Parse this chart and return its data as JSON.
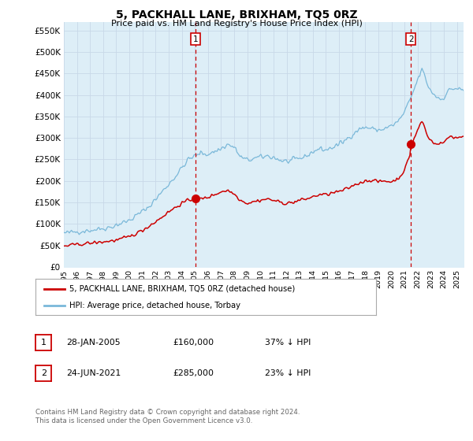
{
  "title": "5, PACKHALL LANE, BRIXHAM, TQ5 0RZ",
  "subtitle": "Price paid vs. HM Land Registry's House Price Index (HPI)",
  "ytick_values": [
    0,
    50000,
    100000,
    150000,
    200000,
    250000,
    300000,
    350000,
    400000,
    450000,
    500000,
    550000
  ],
  "ylim": [
    0,
    570000
  ],
  "xlim_start": 1995.0,
  "xlim_end": 2025.5,
  "hpi_color": "#7ab8d9",
  "hpi_fill_color": "#ddeef7",
  "price_color": "#cc0000",
  "vline_color": "#cc0000",
  "sale1_x": 2005.07,
  "sale1_y": 160000,
  "sale2_x": 2021.48,
  "sale2_y": 285000,
  "legend_house_label": "5, PACKHALL LANE, BRIXHAM, TQ5 0RZ (detached house)",
  "legend_hpi_label": "HPI: Average price, detached house, Torbay",
  "table_row1": [
    "1",
    "28-JAN-2005",
    "£160,000",
    "37% ↓ HPI"
  ],
  "table_row2": [
    "2",
    "24-JUN-2021",
    "£285,000",
    "23% ↓ HPI"
  ],
  "footer": "Contains HM Land Registry data © Crown copyright and database right 2024.\nThis data is licensed under the Open Government Licence v3.0.",
  "background_color": "#ffffff",
  "grid_color": "#c8d8e8"
}
